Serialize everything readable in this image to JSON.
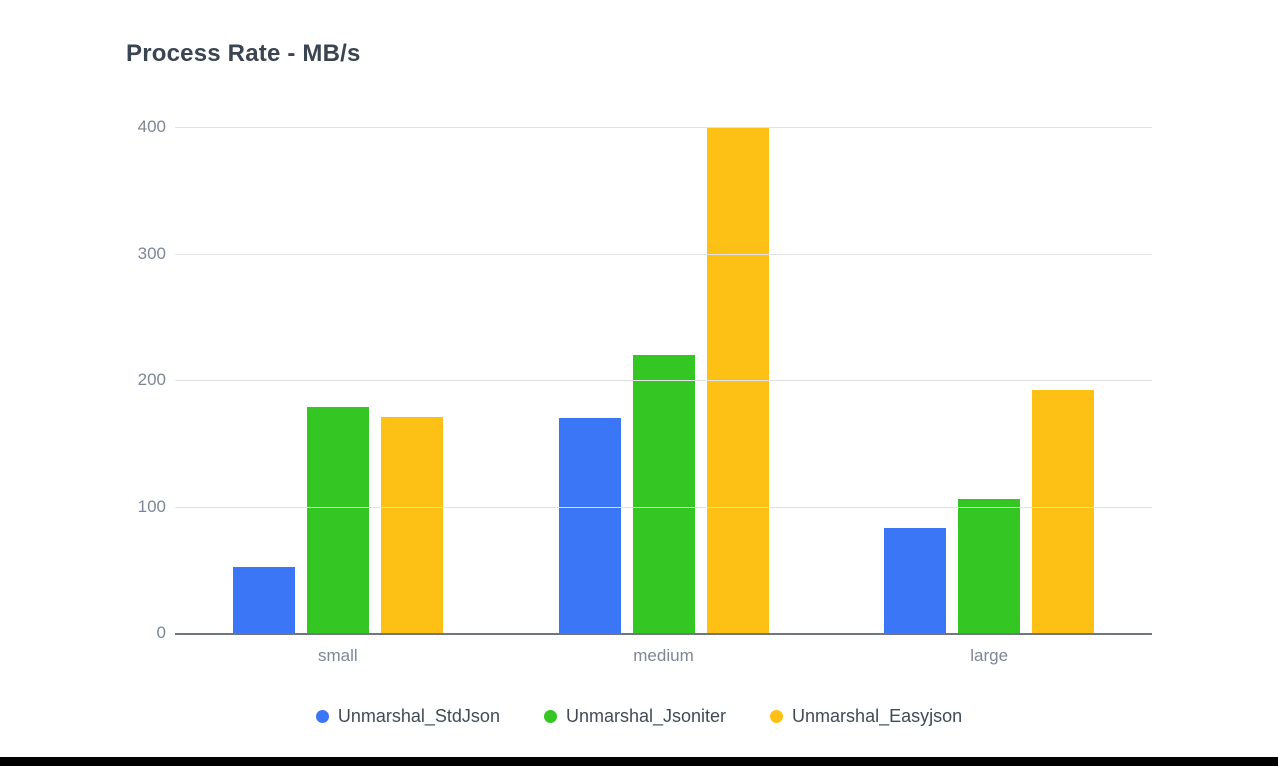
{
  "title": "Process Rate - MB/s",
  "chart_data": {
    "type": "bar",
    "title": "Process Rate - MB/s",
    "categories": [
      "small",
      "medium",
      "large"
    ],
    "series": [
      {
        "name": "Unmarshal_StdJson",
        "color": "#3b76f6",
        "values": [
          52,
          170,
          83
        ]
      },
      {
        "name": "Unmarshal_Jsoniter",
        "color": "#34c724",
        "values": [
          179,
          220,
          106
        ]
      },
      {
        "name": "Unmarshal_Easyjson",
        "color": "#fdc115",
        "values": [
          171,
          400,
          192
        ]
      }
    ],
    "xlabel": "",
    "ylabel": "",
    "ylim": [
      0,
      400
    ],
    "yticks": [
      0,
      100,
      200,
      300,
      400
    ],
    "grid": true,
    "legend_position": "bottom"
  },
  "colors": {
    "title_text": "#3b4551",
    "axis_label": "#7e8795",
    "legend_label": "#414b55",
    "gridline": "#e0e2e4",
    "baseline": "#70767e",
    "background": "#ffffff",
    "bottom_edge_bar": "#000000"
  }
}
